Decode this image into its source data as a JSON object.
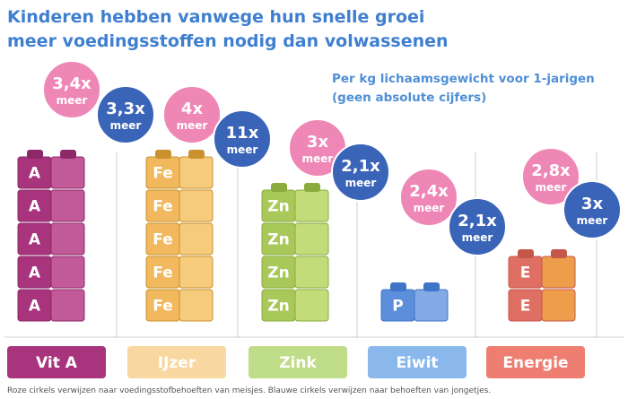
{
  "title_line1": "Kinderen hebben vanwege hun snelle groei",
  "title_line2": "meer voedingsstoffen nodig dan volwassenen",
  "subtitle_line1": "Per kg lichaamsgewicht voor 1-jarigen",
  "subtitle_line2": "(geen absolute cijfers)",
  "footnote": "Roze cirkels verwijzen naar voedingsstofbehoeften van meisjes. Blauwe cirkels verwijzen naar behoeften van jongetjes.",
  "chart_data": {
    "type": "bar",
    "categories": [
      "Vit A",
      "IJzer",
      "Zink",
      "Eiwit",
      "Energie"
    ],
    "block_letters": [
      "A",
      "Fe",
      "Zn",
      "P",
      "E"
    ],
    "block_counts": [
      5,
      5,
      4,
      1,
      2
    ],
    "series": [
      {
        "name": "meisjes",
        "values": [
          3.4,
          4,
          3,
          2.4,
          2.8
        ],
        "labels": [
          "3,4x",
          "4x",
          "3x",
          "2,4x",
          "2,8x"
        ]
      },
      {
        "name": "jongetjes",
        "values": [
          3.3,
          11,
          2.1,
          2.1,
          3
        ],
        "labels": [
          "3,3x",
          "11x",
          "2,1x",
          "2,1x",
          "3x"
        ]
      }
    ],
    "unit_word": "meer",
    "colors": {
      "block_front": [
        "#a8347e",
        "#f1b85e",
        "#a8c95a",
        "#5b8fdc",
        "#e06f63"
      ],
      "block_side": [
        "#c25a9a",
        "#f6cb7c",
        "#c2dc7a",
        "#82abe6",
        "#ee9d4a"
      ],
      "block_top": [
        "#8e2868",
        "#c9922e",
        "#8bab3e",
        "#3f74c6",
        "#c5564a"
      ],
      "label_bg": [
        "#a8347e",
        "#f8d8a0",
        "#bfdc88",
        "#8ab7ec",
        "#ee7e72"
      ],
      "circle_pink": "#ee86b6",
      "circle_blue": "#3a64b8"
    }
  }
}
